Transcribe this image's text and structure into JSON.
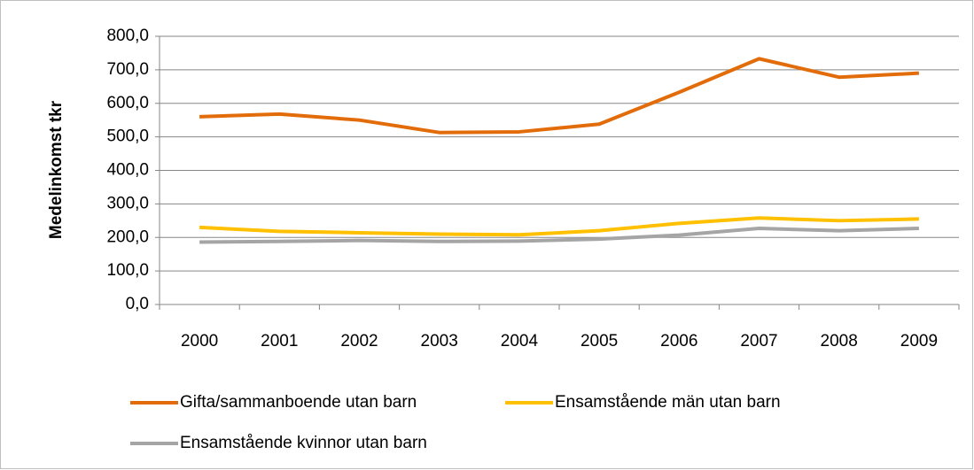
{
  "chart_data": {
    "type": "line",
    "y_label": "Medelinkomst tkr",
    "categories": [
      "2000",
      "2001",
      "2002",
      "2003",
      "2004",
      "2005",
      "2006",
      "2007",
      "2008",
      "2009"
    ],
    "series": [
      {
        "name": "Gifta/sammanboende utan barn",
        "color": "#e36c0a",
        "values": [
          560,
          568,
          550,
          513,
          515,
          538,
          633,
          733,
          678,
          690
        ]
      },
      {
        "name": "Ensamstående män utan barn",
        "color": "#ffc000",
        "values": [
          230,
          218,
          214,
          210,
          208,
          220,
          242,
          258,
          250,
          255
        ]
      },
      {
        "name": "Ensamstående kvinnor utan barn",
        "color": "#a5a5a5",
        "values": [
          186,
          188,
          191,
          188,
          189,
          195,
          207,
          227,
          220,
          227
        ]
      }
    ],
    "ylim": [
      0,
      800
    ],
    "yticks": [
      {
        "value": 0,
        "label": "0,0"
      },
      {
        "value": 100,
        "label": "100,0"
      },
      {
        "value": 200,
        "label": "200,0"
      },
      {
        "value": 300,
        "label": "300,0"
      },
      {
        "value": 400,
        "label": "400,0"
      },
      {
        "value": 500,
        "label": "500,0"
      },
      {
        "value": 600,
        "label": "600,0"
      },
      {
        "value": 700,
        "label": "700,0"
      },
      {
        "value": 800,
        "label": "800,0"
      }
    ],
    "grid": true
  }
}
